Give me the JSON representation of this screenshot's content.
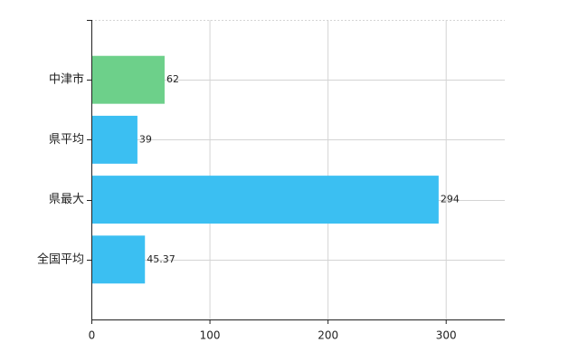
{
  "chart_data": {
    "type": "hbar",
    "categories": [
      "中津市",
      "県平均",
      "県最大",
      "全国平均"
    ],
    "values": [
      62,
      39,
      294,
      45.37
    ],
    "colors": [
      "#6dd08a",
      "#3bbff2",
      "#3bbff2",
      "#3bbff2"
    ],
    "xlim": [
      0,
      350
    ],
    "xticks": [
      0,
      100,
      200,
      300
    ],
    "grid": true
  }
}
